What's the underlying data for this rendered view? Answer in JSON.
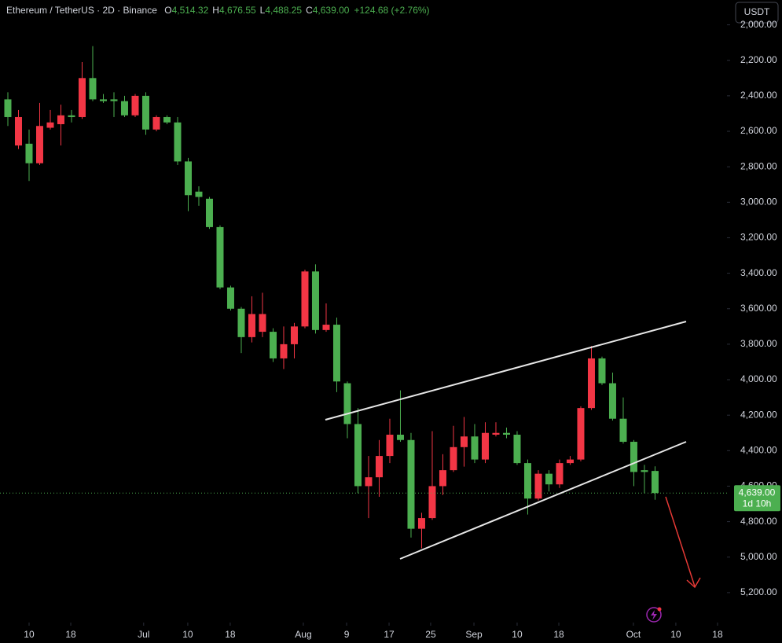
{
  "chart_data": {
    "type": "candlestick",
    "title": "Ethereum / TetherUS · 2D · Binance",
    "ohlc_header": [
      {
        "key": "O",
        "value": 4514.32,
        "label": "4,514.32"
      },
      {
        "key": "H",
        "value": 4676.55,
        "label": "4,676.55"
      },
      {
        "key": "L",
        "value": 4488.25,
        "label": "4,488.25"
      },
      {
        "key": "C",
        "value": 4639.0,
        "label": "4,639.00"
      }
    ],
    "change": "+124.68 (+2.76%)",
    "currency_button": "USDT",
    "last_price": {
      "value": 4639,
      "label": "4,639.00"
    },
    "countdown": "1d 10h",
    "up_color": "#4caf50",
    "down_color": "#f23645",
    "inverted": true,
    "open": [
      2420,
      2680,
      2670,
      2780,
      2580,
      2560,
      2510,
      2520,
      2300,
      2420,
      2420,
      2430,
      2510,
      2400,
      2590,
      2520,
      2550,
      2770,
      2940,
      2980,
      3140,
      3480,
      3600,
      3760,
      3730,
      3730,
      3880,
      3800,
      3700,
      3390,
      3720,
      3690,
      4020,
      4250,
      4600,
      4550,
      4430,
      4310,
      4340,
      4840,
      4780,
      4600,
      4510,
      4380,
      4320,
      4450,
      4310,
      4300,
      4310,
      4470,
      4670,
      4530,
      4590,
      4470,
      4450,
      4160,
      3880,
      4020,
      4220,
      4350,
      4510,
      4514.32
    ],
    "high": [
      2570,
      2700,
      2880,
      2790,
      2590,
      2680,
      2550,
      2530,
      2430,
      2440,
      2520,
      2520,
      2520,
      2620,
      2600,
      2560,
      2790,
      3050,
      3020,
      3150,
      3490,
      3610,
      3850,
      3790,
      3760,
      3900,
      3940,
      3880,
      3710,
      3740,
      3730,
      4070,
      4330,
      4640,
      4780,
      4660,
      4470,
      4350,
      4890,
      4950,
      4790,
      4650,
      4520,
      4490,
      4470,
      4470,
      4320,
      4330,
      4480,
      4760,
      4680,
      4630,
      4610,
      4480,
      4460,
      4170,
      4030,
      4230,
      4360,
      4600,
      4640,
      4676.55
    ],
    "low": [
      2380,
      2480,
      2590,
      2440,
      2480,
      2450,
      2480,
      2210,
      2120,
      2390,
      2380,
      2400,
      2390,
      2380,
      2510,
      2510,
      2520,
      2750,
      2910,
      2970,
      3130,
      3470,
      3590,
      3530,
      3510,
      3710,
      3700,
      3680,
      3380,
      3350,
      3570,
      3650,
      4010,
      4160,
      4430,
      4340,
      4220,
      4060,
      4300,
      4750,
      4290,
      4420,
      4260,
      4210,
      4250,
      4240,
      4240,
      4270,
      4290,
      4450,
      4510,
      4510,
      4450,
      4430,
      4150,
      3810,
      3870,
      3960,
      4100,
      4340,
      4480,
      4488.25
    ],
    "close": [
      2520,
      2520,
      2780,
      2570,
      2550,
      2510,
      2520,
      2300,
      2420,
      2430,
      2430,
      2510,
      2400,
      2590,
      2520,
      2550,
      2770,
      2960,
      2970,
      3140,
      3480,
      3600,
      3760,
      3630,
      3630,
      3880,
      3800,
      3700,
      3390,
      3720,
      3690,
      4010,
      4250,
      4600,
      4550,
      4430,
      4310,
      4340,
      4840,
      4780,
      4600,
      4510,
      4380,
      4320,
      4450,
      4300,
      4300,
      4310,
      4470,
      4670,
      4530,
      4590,
      4470,
      4450,
      4160,
      3880,
      4020,
      4220,
      4350,
      4520,
      4520,
      4639
    ],
    "xlim": [
      -0.74,
      67.78
    ],
    "xticks": [
      {
        "value": 2,
        "label": "10"
      },
      {
        "value": 5.93,
        "label": "18"
      },
      {
        "value": 12.8,
        "label": "Jul"
      },
      {
        "value": 16.96,
        "label": "10"
      },
      {
        "value": 20.96,
        "label": "18"
      },
      {
        "value": 27.85,
        "label": "Aug"
      },
      {
        "value": 31.93,
        "label": "9"
      },
      {
        "value": 35.93,
        "label": "17"
      },
      {
        "value": 39.85,
        "label": "25"
      },
      {
        "value": 43.93,
        "label": "Sep"
      },
      {
        "value": 48,
        "label": "10"
      },
      {
        "value": 51.93,
        "label": "18"
      },
      {
        "value": 58.96,
        "label": "Oct"
      },
      {
        "value": 62.96,
        "label": "10"
      },
      {
        "value": 66.89,
        "label": "18"
      }
    ],
    "ylim": [
      1860,
      5360
    ],
    "yticks": [
      {
        "value": 2000,
        "label": "2,000.00"
      },
      {
        "value": 2200,
        "label": "2,200.00"
      },
      {
        "value": 2400,
        "label": "2,400.00"
      },
      {
        "value": 2600,
        "label": "2,600.00"
      },
      {
        "value": 2800,
        "label": "2,800.00"
      },
      {
        "value": 3000,
        "label": "3,000.00"
      },
      {
        "value": 3200,
        "label": "3,200.00"
      },
      {
        "value": 3400,
        "label": "3,400.00"
      },
      {
        "value": 3600,
        "label": "3,600.00"
      },
      {
        "value": 3800,
        "label": "3,800.00"
      },
      {
        "value": 4000,
        "label": "4,000.00"
      },
      {
        "value": 4200,
        "label": "4,200.00"
      },
      {
        "value": 4400,
        "label": "4,400.00"
      },
      {
        "value": 4600,
        "label": "4,600.00"
      },
      {
        "value": 4800,
        "label": "4,800.00"
      },
      {
        "value": 5000,
        "label": "5,000.00"
      },
      {
        "value": 5200,
        "label": "5,200.00"
      }
    ]
  }
}
